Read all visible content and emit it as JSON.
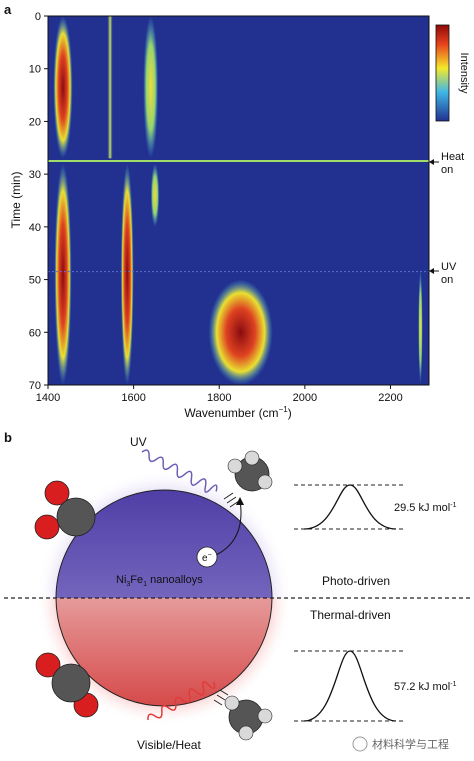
{
  "panel_a": {
    "label": "a",
    "xlabel": "Wavenumber (cm",
    "xlabel_sup": "−1",
    "xlabel_close": ")",
    "ylabel": "Time (min)",
    "x_ticks": [
      "1400",
      "1600",
      "1800",
      "2000",
      "2200"
    ],
    "y_ticks": [
      "0",
      "10",
      "20",
      "30",
      "40",
      "50",
      "60",
      "70"
    ],
    "colorbar_label": "Intensity",
    "annotations": [
      {
        "line1": "Heat",
        "line2": "on"
      },
      {
        "line1": "UV",
        "line2": "on"
      }
    ]
  },
  "panel_b": {
    "label": "b",
    "uv_label": "UV",
    "visible_label": "Visible/Heat",
    "electron": "e",
    "electron_sup": "−",
    "particle_label_1": "Ni",
    "particle_sub_1": "3",
    "particle_label_2": "Fe",
    "particle_sub_2": "1",
    "particle_label_3": " nanoalloys",
    "photo_label": "Photo-driven",
    "thermal_label": "Thermal-driven",
    "barrier_top": "29.5 kJ mol",
    "barrier_top_sup": "-1",
    "barrier_bottom": "57.2 kJ mol",
    "barrier_bottom_sup": "-1"
  },
  "watermark": "材料科学与工程",
  "colors": {
    "heatmap_bg": "#22318f",
    "uv_purple": "#6a5fb5",
    "heat_red": "#e23a3a",
    "co_red": "#d81e1e",
    "co_gray": "#555555"
  },
  "chart_data": {
    "type": "heatmap",
    "xlabel": "Wavenumber (cm−1)",
    "ylabel": "Time (min)",
    "xlim": [
      1400,
      2290
    ],
    "ylim": [
      0,
      70
    ],
    "y_inverted": true,
    "colorbar": {
      "label": "Intensity",
      "scale": [
        "low",
        "high"
      ],
      "colors": [
        "#22318f",
        "#3fb7e6",
        "#f4e92c",
        "#e8421c",
        "#8f0a0a"
      ]
    },
    "events": [
      {
        "time": 27.5,
        "label": "Heat on"
      },
      {
        "time": 48.5,
        "label": "UV on"
      }
    ],
    "features": [
      {
        "band_center": 1435,
        "band_width": 45,
        "t_start": 0,
        "t_end": 27,
        "peak_intensity": 0.95
      },
      {
        "band_center": 1545,
        "band_width": 12,
        "t_start": 0,
        "t_end": 27,
        "peak_intensity": 0.45
      },
      {
        "band_center": 1640,
        "band_width": 35,
        "t_start": 0,
        "t_end": 27,
        "peak_intensity": 0.6
      },
      {
        "band_center": 1435,
        "band_width": 40,
        "t_start": 28,
        "t_end": 70,
        "peak_intensity": 1.0
      },
      {
        "band_center": 1585,
        "band_width": 30,
        "t_start": 28,
        "t_end": 70,
        "peak_intensity": 0.9
      },
      {
        "band_center": 1650,
        "band_width": 20,
        "t_start": 28,
        "t_end": 40,
        "peak_intensity": 0.6
      },
      {
        "band_center": 1850,
        "band_width": 150,
        "t_start": 50,
        "t_end": 70,
        "peak_intensity": 0.85
      },
      {
        "band_center": 2270,
        "band_width": 10,
        "t_start": 48,
        "t_end": 70,
        "peak_intensity": 0.6
      }
    ]
  }
}
